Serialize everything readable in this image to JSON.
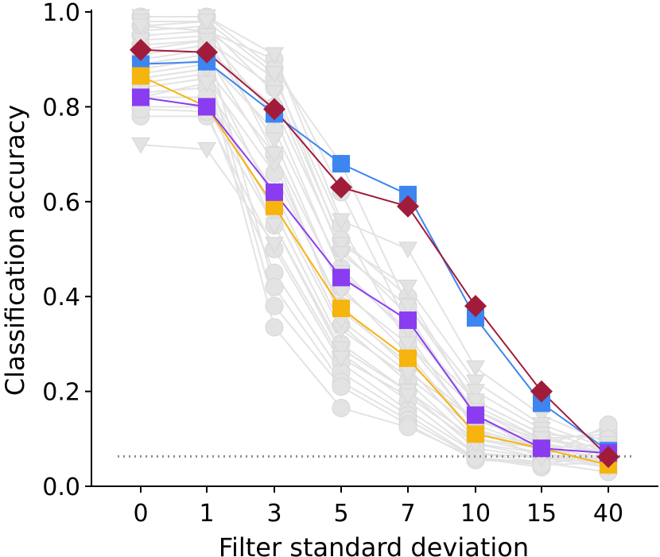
{
  "chart_data": {
    "type": "line",
    "title": "",
    "xlabel": "Filter standard deviation",
    "ylabel": "Classification accuracy",
    "categories": [
      "0",
      "1",
      "3",
      "5",
      "7",
      "10",
      "15",
      "40"
    ],
    "ylim": [
      0.0,
      1.0
    ],
    "yticks": [
      "0.0",
      "0.2",
      "0.4",
      "0.6",
      "0.8",
      "1.0"
    ],
    "ytick_values": [
      0.0,
      0.2,
      0.4,
      0.6,
      0.8,
      1.0
    ],
    "grid": false,
    "chance_level": 0.063,
    "series": [
      {
        "name": "blue-squares",
        "color": "#3d85f0",
        "marker": "square",
        "values": [
          0.89,
          0.895,
          0.785,
          0.68,
          0.615,
          0.355,
          0.175,
          0.075
        ]
      },
      {
        "name": "orange-squares",
        "color": "#f6b40e",
        "marker": "square",
        "values": [
          0.865,
          0.8,
          0.59,
          0.375,
          0.27,
          0.11,
          0.08,
          0.045
        ]
      },
      {
        "name": "purple-squares",
        "color": "#8a3cf0",
        "marker": "square",
        "values": [
          0.82,
          0.8,
          0.62,
          0.44,
          0.35,
          0.15,
          0.08,
          0.07
        ]
      },
      {
        "name": "red-diamonds",
        "color": "#a11c3a",
        "marker": "diamond",
        "values": [
          0.92,
          0.915,
          0.795,
          0.63,
          0.59,
          0.38,
          0.2,
          0.062
        ]
      }
    ],
    "background_series": {
      "color": "#e3e3e3",
      "circles": [
        [
          0.97,
          0.96,
          0.9,
          0.62,
          0.34,
          0.16,
          0.09,
          0.07
        ],
        [
          0.95,
          0.96,
          0.86,
          0.55,
          0.3,
          0.13,
          0.08,
          0.05
        ],
        [
          0.93,
          0.94,
          0.84,
          0.52,
          0.4,
          0.17,
          0.1,
          0.11
        ],
        [
          0.9,
          0.92,
          0.8,
          0.5,
          0.36,
          0.15,
          0.07,
          0.08
        ],
        [
          0.88,
          0.9,
          0.75,
          0.46,
          0.32,
          0.12,
          0.06,
          0.06
        ],
        [
          0.86,
          0.88,
          0.7,
          0.42,
          0.28,
          0.11,
          0.09,
          0.12
        ],
        [
          0.84,
          0.86,
          0.66,
          0.38,
          0.25,
          0.1,
          0.08,
          0.09
        ],
        [
          0.83,
          0.84,
          0.62,
          0.34,
          0.22,
          0.09,
          0.07,
          0.05
        ],
        [
          0.82,
          0.82,
          0.58,
          0.3,
          0.2,
          0.08,
          0.06,
          0.04
        ],
        [
          0.8,
          0.8,
          0.55,
          0.28,
          0.18,
          0.07,
          0.05,
          0.1
        ],
        [
          0.78,
          0.78,
          0.5,
          0.26,
          0.16,
          0.07,
          0.06,
          0.13
        ],
        [
          0.795,
          0.79,
          0.45,
          0.24,
          0.15,
          0.06,
          0.05,
          0.03
        ],
        [
          0.91,
          0.93,
          0.42,
          0.22,
          0.14,
          0.06,
          0.04,
          0.08
        ],
        [
          0.87,
          0.89,
          0.38,
          0.21,
          0.13,
          0.055,
          0.05,
          0.06
        ],
        [
          0.85,
          0.87,
          0.335,
          0.165,
          0.125,
          0.06,
          0.045,
          0.05
        ],
        [
          0.99,
          0.99,
          0.88,
          0.68,
          0.38,
          0.18,
          0.11,
          0.1
        ]
      ],
      "triangles": [
        [
          0.99,
          0.99,
          0.91,
          0.56,
          0.5,
          0.25,
          0.15,
          0.09
        ],
        [
          0.98,
          0.98,
          0.87,
          0.51,
          0.42,
          0.22,
          0.13,
          0.08
        ],
        [
          0.96,
          0.97,
          0.83,
          0.49,
          0.38,
          0.2,
          0.12,
          0.07
        ],
        [
          0.94,
          0.95,
          0.78,
          0.45,
          0.33,
          0.18,
          0.11,
          0.06
        ],
        [
          0.92,
          0.94,
          0.73,
          0.41,
          0.3,
          0.16,
          0.1,
          0.07
        ],
        [
          0.89,
          0.91,
          0.68,
          0.37,
          0.26,
          0.14,
          0.09,
          0.05
        ],
        [
          0.86,
          0.88,
          0.6,
          0.33,
          0.23,
          0.12,
          0.08,
          0.06
        ],
        [
          0.82,
          0.85,
          0.55,
          0.29,
          0.2,
          0.1,
          0.07,
          0.04
        ],
        [
          0.72,
          0.71,
          0.51,
          0.27,
          0.19,
          0.09,
          0.06,
          0.05
        ],
        [
          0.97,
          0.98,
          0.7,
          0.35,
          0.24,
          0.14,
          0.1,
          0.08
        ]
      ]
    }
  }
}
